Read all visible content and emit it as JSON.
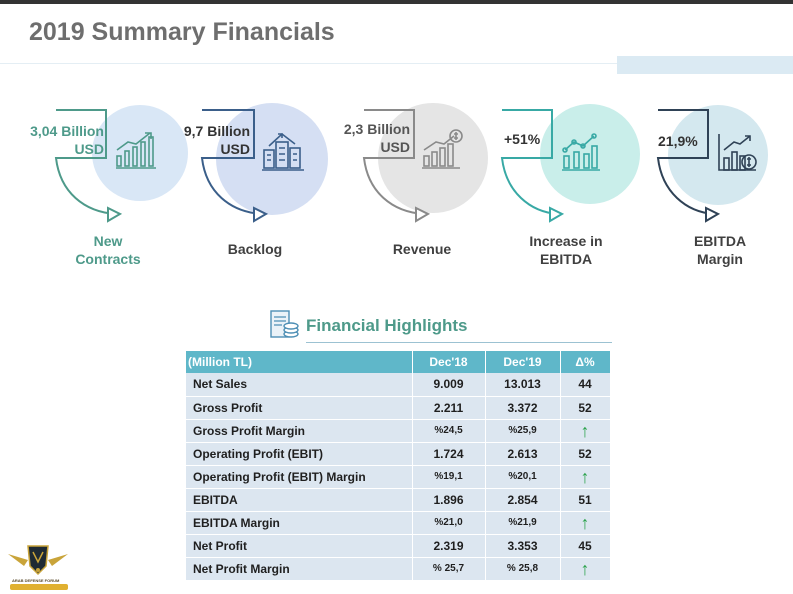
{
  "header": {
    "title": "2019 Summary Financials"
  },
  "kpis": [
    {
      "value_line1": "3,04 Billion",
      "value_line2": "USD",
      "label_line1": "New",
      "label_line2": "Contracts",
      "icon": "bar-chart-growth-icon"
    },
    {
      "value_line1": "9,7 Billion",
      "value_line2": "USD",
      "label_line1": "Backlog",
      "label_line2": "",
      "icon": "buildings-arrows-icon"
    },
    {
      "value_line1": "2,3 Billion",
      "value_line2": "USD",
      "label_line1": "Revenue",
      "label_line2": "",
      "icon": "revenue-chart-dollar-icon"
    },
    {
      "value_line1": "+51%",
      "value_line2": "",
      "label_line1": "Increase in",
      "label_line2": "EBITDA",
      "icon": "line-bar-chart-icon"
    },
    {
      "value_line1": "21,9%",
      "value_line2": "",
      "label_line1": "EBITDA",
      "label_line2": "Margin",
      "icon": "chart-dollar-icon"
    }
  ],
  "highlights": {
    "title": "Financial Highlights",
    "columns": [
      "(Million TL)",
      "Dec'18",
      "Dec'19",
      "Δ%"
    ],
    "rows": [
      {
        "item": "Net Sales",
        "dec18": "9.009",
        "dec19": "13.013",
        "delta": "44"
      },
      {
        "item": "Gross Profit",
        "dec18": "2.211",
        "dec19": "3.372",
        "delta": "52"
      },
      {
        "item": "Gross Profit Margin",
        "dec18": "%24,5",
        "dec19": "%25,9",
        "delta": "↑"
      },
      {
        "item": "Operating Profit (EBIT)",
        "dec18": "1.724",
        "dec19": "2.613",
        "delta": "52"
      },
      {
        "item": "Operating Profit (EBIT) Margin",
        "dec18": "%19,1",
        "dec19": "%20,1",
        "delta": "↑"
      },
      {
        "item": "EBITDA",
        "dec18": "1.896",
        "dec19": "2.854",
        "delta": "51"
      },
      {
        "item": "EBITDA Margin",
        "dec18": "%21,0",
        "dec19": "%21,9",
        "delta": "↑"
      },
      {
        "item": "Net Profit",
        "dec18": "2.319",
        "dec19": "3.353",
        "delta": "45"
      },
      {
        "item": "Net Profit Margin",
        "dec18": "% 25,7",
        "dec19": "% 25,8",
        "delta": "↑"
      }
    ]
  },
  "watermark": {
    "text": "ARAB DEFENSE FORUM"
  },
  "colors": {
    "teal": "#4e9a8a",
    "blue": "#3b5f8a",
    "gray": "#8a8a8a",
    "cyan": "#38a9a5",
    "navy": "#2f4256",
    "header_fill": "#5fb7c9",
    "row_fill": "#dce6f0",
    "up_arrow": "#2aa24b"
  }
}
